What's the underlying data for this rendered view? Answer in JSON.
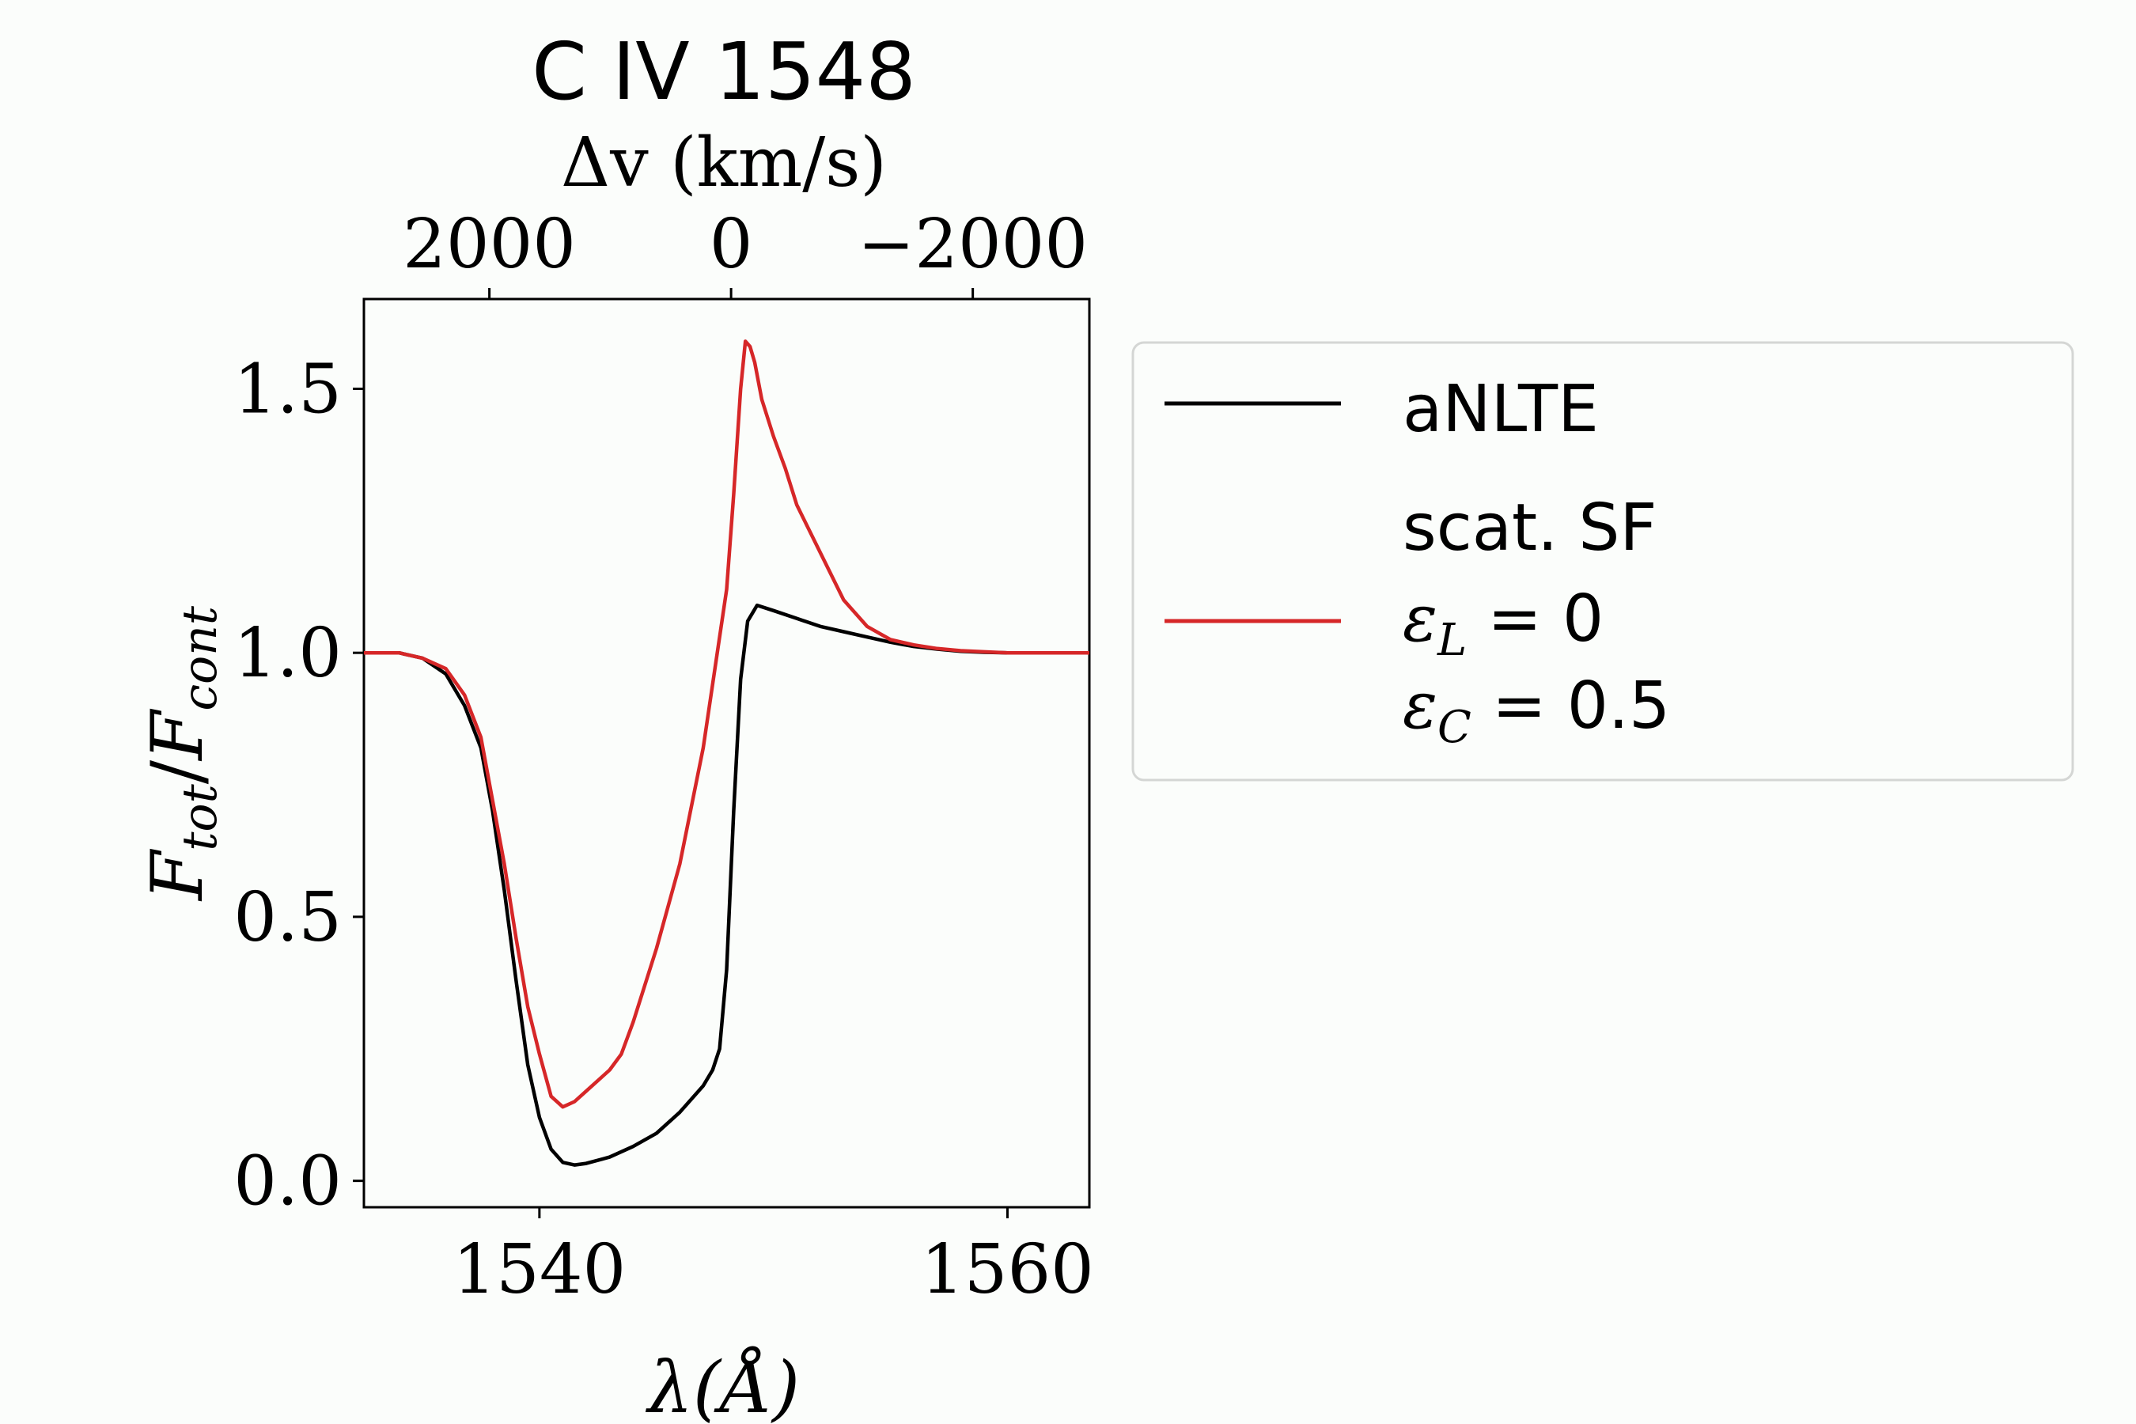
{
  "chart_data": {
    "type": "line",
    "title": "C IV 1548",
    "xlabel": "λ(Å)",
    "ylabel_main": "F",
    "ylabel_num_sub": "tot",
    "ylabel_den_sub": "cont",
    "ylabel_slash": "/",
    "top_xlabel": "Δv (km/s)",
    "xlim": [
      1532.5,
      1563.5
    ],
    "ylim": [
      -0.05,
      1.67
    ],
    "xticks": [
      1540,
      1560
    ],
    "xtick_labels": [
      "1540",
      "1560"
    ],
    "yticks": [
      0.0,
      0.5,
      1.0,
      1.5
    ],
    "ytick_labels": [
      "0.0",
      "0.5",
      "1.0",
      "1.5"
    ],
    "top_ticks_km_s": [
      2000,
      0,
      -2000
    ],
    "top_tick_labels": [
      "2000",
      "0",
      "−2000"
    ],
    "rest_wavelength": 1548.19,
    "grid": false,
    "legend_position": "right, outside plot",
    "series": [
      {
        "name": "aNLTE",
        "color": "#000000",
        "x": [
          1532.5,
          1534,
          1535,
          1536,
          1536.8,
          1537.5,
          1538,
          1538.5,
          1539,
          1539.5,
          1540,
          1540.5,
          1541,
          1541.5,
          1542,
          1543,
          1544,
          1545,
          1546,
          1547,
          1547.4,
          1547.7,
          1548.0,
          1548.3,
          1548.6,
          1548.9,
          1549.3,
          1550,
          1551,
          1552,
          1553,
          1554,
          1555,
          1556,
          1557,
          1558,
          1559,
          1560,
          1563.5
        ],
        "y": [
          1.0,
          1.0,
          0.99,
          0.96,
          0.9,
          0.82,
          0.7,
          0.55,
          0.38,
          0.22,
          0.12,
          0.06,
          0.035,
          0.03,
          0.033,
          0.045,
          0.065,
          0.09,
          0.13,
          0.18,
          0.21,
          0.25,
          0.4,
          0.7,
          0.95,
          1.06,
          1.09,
          1.08,
          1.065,
          1.05,
          1.04,
          1.03,
          1.02,
          1.012,
          1.007,
          1.003,
          1.001,
          1.0,
          1.0
        ]
      },
      {
        "name_line1": "scat.  SF",
        "name_line2": "ε",
        "name_line2_sub": "L",
        "name_line2_rest": " = 0",
        "name_line3": "ε",
        "name_line3_sub": "C",
        "name_line3_rest": " = 0.5",
        "color": "#d62728",
        "x": [
          1532.5,
          1534,
          1535,
          1536,
          1536.8,
          1537.5,
          1538,
          1538.5,
          1539,
          1539.5,
          1540,
          1540.5,
          1541,
          1541.5,
          1542,
          1543,
          1543.5,
          1544,
          1545,
          1546,
          1547,
          1547.5,
          1548.0,
          1548.3,
          1548.6,
          1548.8,
          1549.0,
          1549.2,
          1549.5,
          1550,
          1550.5,
          1551,
          1552,
          1553,
          1554,
          1555,
          1556,
          1557,
          1558,
          1559,
          1560,
          1563.5
        ],
        "y": [
          1.0,
          1.0,
          0.99,
          0.97,
          0.92,
          0.84,
          0.72,
          0.6,
          0.46,
          0.33,
          0.24,
          0.16,
          0.14,
          0.15,
          0.17,
          0.21,
          0.24,
          0.3,
          0.44,
          0.6,
          0.82,
          0.97,
          1.12,
          1.3,
          1.5,
          1.59,
          1.58,
          1.55,
          1.48,
          1.41,
          1.35,
          1.28,
          1.19,
          1.1,
          1.05,
          1.025,
          1.015,
          1.008,
          1.004,
          1.002,
          1.0,
          1.0
        ]
      }
    ]
  }
}
